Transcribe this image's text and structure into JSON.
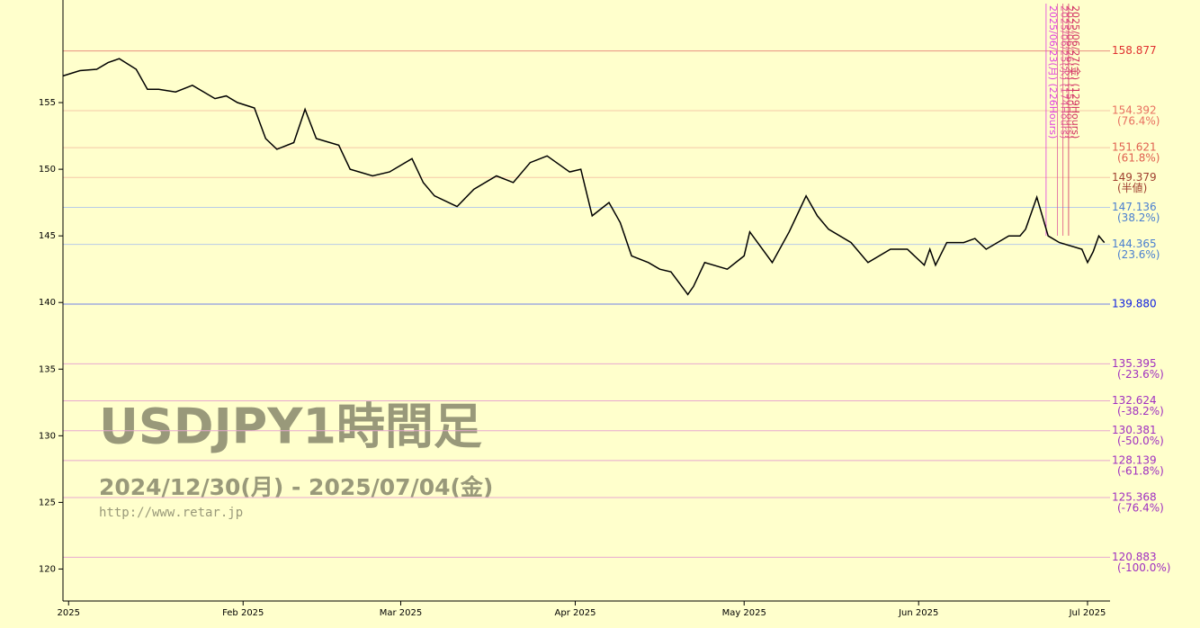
{
  "chart_data": {
    "type": "line",
    "title": "USDJPY1時間足",
    "subtitle": "2024/12/30(月) - 2025/07/04(金)",
    "url": "http://www.retar.jp",
    "x": [
      "2024-12-31",
      "2025-01-03",
      "2025-01-06",
      "2025-01-08",
      "2025-01-10",
      "2025-01-13",
      "2025-01-15",
      "2025-01-17",
      "2025-01-20",
      "2025-01-23",
      "2025-01-27",
      "2025-01-29",
      "2025-01-31",
      "2025-02-03",
      "2025-02-05",
      "2025-02-07",
      "2025-02-10",
      "2025-02-12",
      "2025-02-14",
      "2025-02-18",
      "2025-02-20",
      "2025-02-24",
      "2025-02-27",
      "2025-03-03",
      "2025-03-05",
      "2025-03-07",
      "2025-03-11",
      "2025-03-14",
      "2025-03-18",
      "2025-03-21",
      "2025-03-24",
      "2025-03-27",
      "2025-03-31",
      "2025-04-02",
      "2025-04-04",
      "2025-04-07",
      "2025-04-09",
      "2025-04-11",
      "2025-04-14",
      "2025-04-16",
      "2025-04-18",
      "2025-04-21",
      "2025-04-22",
      "2025-04-24",
      "2025-04-28",
      "2025-05-01",
      "2025-05-02",
      "2025-05-06",
      "2025-05-09",
      "2025-05-12",
      "2025-05-14",
      "2025-05-16",
      "2025-05-20",
      "2025-05-23",
      "2025-05-27",
      "2025-05-30",
      "2025-06-02",
      "2025-06-03",
      "2025-06-04",
      "2025-06-06",
      "2025-06-09",
      "2025-06-11",
      "2025-06-13",
      "2025-06-17",
      "2025-06-19",
      "2025-06-20",
      "2025-06-22",
      "2025-06-24",
      "2025-06-26",
      "2025-06-30",
      "2025-07-01",
      "2025-07-02",
      "2025-07-03",
      "2025-07-04"
    ],
    "values": [
      157.0,
      157.4,
      157.5,
      158.0,
      158.3,
      157.5,
      156.0,
      156.0,
      155.8,
      156.3,
      155.3,
      155.5,
      155.0,
      154.6,
      152.3,
      151.5,
      152.0,
      154.5,
      152.3,
      151.8,
      150.0,
      149.5,
      149.8,
      150.8,
      149.0,
      148.0,
      147.2,
      148.5,
      149.5,
      149.0,
      150.5,
      151.0,
      149.8,
      150.0,
      146.5,
      147.5,
      146.0,
      143.5,
      143.0,
      142.5,
      142.3,
      140.6,
      141.2,
      143.0,
      142.5,
      143.5,
      145.3,
      143.0,
      145.3,
      148.0,
      146.5,
      145.5,
      144.5,
      143.0,
      144.0,
      144.0,
      142.8,
      144.0,
      142.8,
      144.5,
      144.5,
      144.8,
      144.0,
      145.0,
      145.0,
      145.5,
      147.9,
      145.0,
      144.5,
      144.0,
      143.0,
      143.8,
      145.0,
      144.5
    ],
    "color": "#000000",
    "xlim": [
      "2024-12-31",
      "2025-07-05"
    ],
    "xticks": [
      {
        "value": "2025-01-01",
        "label": "2025"
      },
      {
        "value": "2025-02-01",
        "label": "Feb 2025"
      },
      {
        "value": "2025-03-01",
        "label": "Mar 2025"
      },
      {
        "value": "2025-04-01",
        "label": "Apr 2025"
      },
      {
        "value": "2025-05-01",
        "label": "May 2025"
      },
      {
        "value": "2025-06-01",
        "label": "Jun 2025"
      },
      {
        "value": "2025-07-01",
        "label": "Jul 2025"
      }
    ],
    "ylim": [
      117.6,
      162.7
    ],
    "yticks": [
      120,
      125,
      130,
      135,
      140,
      145,
      150,
      155
    ],
    "levels": [
      {
        "value": 158.877,
        "label": "158.877",
        "color": "#e03030",
        "line": "#e89080"
      },
      {
        "value": 154.392,
        "label": "154.392",
        "ratio": "(76.4%)",
        "color": "#e87060",
        "line": "#f5c8a8"
      },
      {
        "value": 151.621,
        "label": "151.621",
        "ratio": "(61.8%)",
        "color": "#e06050",
        "line": "#f5c8a8"
      },
      {
        "value": 149.379,
        "label": "149.379",
        "ratio": "(半値)",
        "color": "#a04030",
        "line": "#f5c8a8"
      },
      {
        "value": 147.136,
        "label": "147.136",
        "ratio": "(38.2%)",
        "color": "#4a7fd0",
        "line": "#b8cce8"
      },
      {
        "value": 144.365,
        "label": "144.365",
        "ratio": "(23.6%)",
        "color": "#4a7fd0",
        "line": "#b8cce8"
      },
      {
        "value": 139.88,
        "label": "139.880",
        "color": "#1020e0",
        "line": "#7080e8"
      },
      {
        "value": 135.395,
        "label": "135.395",
        "ratio": "(-23.6%)",
        "color": "#a030c0",
        "line": "#e8a8d0"
      },
      {
        "value": 132.624,
        "label": "132.624",
        "ratio": "(-38.2%)",
        "color": "#a030c0",
        "line": "#e8a8d0"
      },
      {
        "value": 130.381,
        "label": "130.381",
        "ratio": "(-50.0%)",
        "color": "#a030c0",
        "line": "#e8a8d0"
      },
      {
        "value": 128.139,
        "label": "128.139",
        "ratio": "(-61.8%)",
        "color": "#a030c0",
        "line": "#e8a8d0"
      },
      {
        "value": 125.368,
        "label": "125.368",
        "ratio": "(-76.4%)",
        "color": "#a030c0",
        "line": "#e8a8d0"
      },
      {
        "value": 120.883,
        "label": "120.883",
        "ratio": "(-100.0%)",
        "color": "#a030c0",
        "line": "#e8a8d0"
      }
    ],
    "time_markers": [
      "2025/06/23(月) (226Hours)",
      "2025/06/25(水) (174Hours)",
      "2025/06/26(木) (150Hours)",
      "2025/06/27(金) (129Hours)"
    ]
  }
}
